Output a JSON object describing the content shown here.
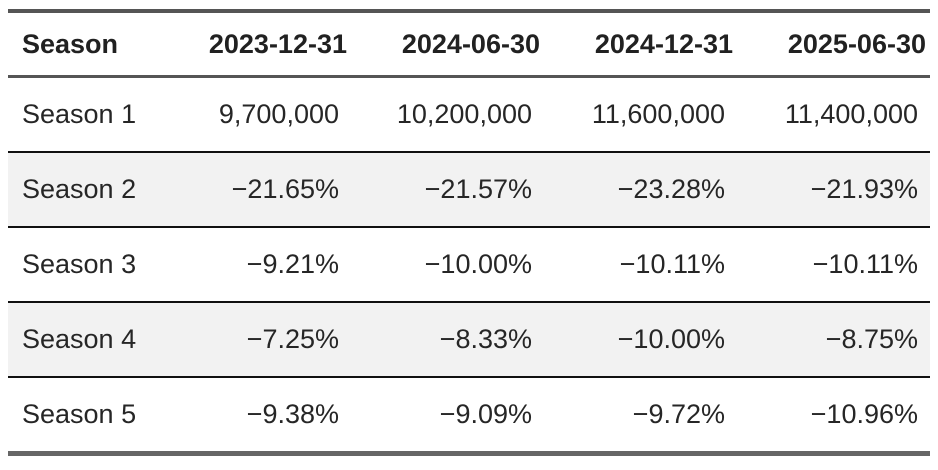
{
  "table": {
    "columns": [
      "Season",
      "2023-12-31",
      "2024-06-30",
      "2024-12-31",
      "2025-06-30"
    ],
    "rows": [
      {
        "label": "Season 1",
        "values": [
          "9,700,000",
          "10,200,000",
          "11,600,000",
          "11,400,000"
        ]
      },
      {
        "label": "Season 2",
        "values": [
          "−21.65%",
          "−21.57%",
          "−23.28%",
          "−21.93%"
        ]
      },
      {
        "label": "Season 3",
        "values": [
          "−9.21%",
          "−10.00%",
          "−10.11%",
          "−10.11%"
        ]
      },
      {
        "label": "Season 4",
        "values": [
          "−7.25%",
          "−8.33%",
          "−10.00%",
          "−8.75%"
        ]
      },
      {
        "label": "Season 5",
        "values": [
          "−9.38%",
          "−9.09%",
          "−9.72%",
          "−10.96%"
        ]
      }
    ],
    "colors": {
      "thick_border": "#555555",
      "bottom_border": "#666666",
      "row_separator": "#111111",
      "stripe_background": "#f2f2f2",
      "header_text": "#212121",
      "body_text": "#262626"
    }
  },
  "chart_data": {
    "type": "table",
    "title": "",
    "columns": [
      "Season",
      "2023-12-31",
      "2024-06-30",
      "2024-12-31",
      "2025-06-30"
    ],
    "rows": [
      [
        "Season 1",
        "9,700,000",
        "10,200,000",
        "11,600,000",
        "11,400,000"
      ],
      [
        "Season 2",
        "−21.65%",
        "−21.57%",
        "−23.28%",
        "−21.93%"
      ],
      [
        "Season 3",
        "−9.21%",
        "−10.00%",
        "−10.11%",
        "−10.11%"
      ],
      [
        "Season 4",
        "−7.25%",
        "−8.33%",
        "−10.00%",
        "−8.75%"
      ],
      [
        "Season 5",
        "−9.38%",
        "−9.09%",
        "−9.72%",
        "−10.96%"
      ]
    ],
    "notes": "Season 1 row holds absolute counts; Seasons 2-5 hold negative percentage changes. Rows for Season 2 and Season 4 have light gray striping."
  }
}
